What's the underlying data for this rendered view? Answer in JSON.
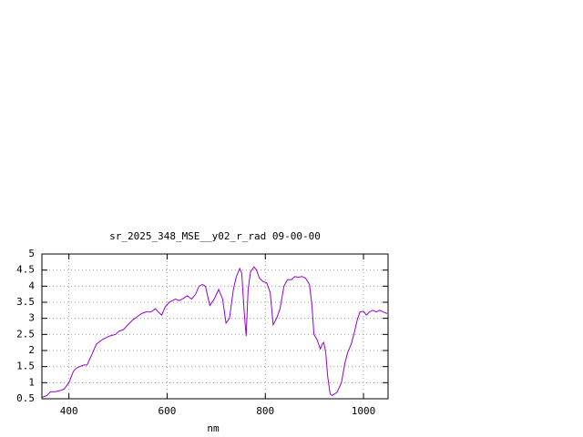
{
  "chart_data": {
    "type": "line",
    "title": "sr_2025_348_MSE__y02_r_rad 09-00-00",
    "x_label": "nm",
    "x": [
      346,
      355,
      363,
      372,
      381,
      390,
      400,
      409,
      415,
      422,
      430,
      437,
      446,
      456,
      469,
      483,
      495,
      502,
      511,
      520,
      530,
      539,
      548,
      557,
      567,
      576,
      582,
      589,
      596,
      604,
      611,
      617,
      624,
      631,
      641,
      650,
      658,
      665,
      672,
      678,
      687,
      696,
      705,
      713,
      720,
      727,
      735,
      741,
      748,
      752,
      757,
      761,
      765,
      770,
      777,
      782,
      788,
      795,
      803,
      810,
      816,
      823,
      830,
      838,
      845,
      853,
      860,
      867,
      875,
      882,
      890,
      895,
      899,
      905,
      912,
      916,
      919,
      923,
      927,
      932,
      936,
      941,
      946,
      955,
      962,
      968,
      975,
      982,
      988,
      993,
      1000,
      1006,
      1012,
      1019,
      1026,
      1033,
      1040,
      1048
    ],
    "series": [
      {
        "color": "#9400d3",
        "values": [
          0.55,
          0.6,
          0.72,
          0.72,
          0.75,
          0.8,
          1.0,
          1.35,
          1.45,
          1.5,
          1.55,
          1.55,
          1.85,
          2.2,
          2.35,
          2.45,
          2.5,
          2.6,
          2.65,
          2.8,
          2.95,
          3.05,
          3.15,
          3.2,
          3.2,
          3.3,
          3.2,
          3.1,
          3.35,
          3.5,
          3.55,
          3.6,
          3.55,
          3.6,
          3.7,
          3.6,
          3.75,
          4.0,
          4.05,
          4.0,
          3.4,
          3.6,
          3.9,
          3.6,
          2.85,
          3.0,
          3.9,
          4.3,
          4.55,
          4.4,
          3.2,
          2.45,
          3.9,
          4.45,
          4.6,
          4.5,
          4.25,
          4.15,
          4.1,
          3.8,
          2.8,
          3.0,
          3.3,
          4.0,
          4.2,
          4.2,
          4.3,
          4.28,
          4.3,
          4.25,
          4.05,
          3.4,
          2.5,
          2.35,
          2.05,
          2.2,
          2.25,
          1.95,
          1.2,
          0.65,
          0.6,
          0.65,
          0.7,
          1.0,
          1.6,
          1.95,
          2.2,
          2.6,
          3.0,
          3.2,
          3.22,
          3.1,
          3.2,
          3.25,
          3.2,
          3.25,
          3.2,
          3.15
        ]
      }
    ],
    "xlim": [
      345,
      1050
    ],
    "xticks": [
      400,
      600,
      800,
      1000
    ],
    "ylim": [
      0.5,
      5
    ],
    "yticks": [
      0.5,
      1,
      1.5,
      2,
      2.5,
      3,
      3.5,
      4,
      4.5,
      5
    ],
    "grid": true
  }
}
